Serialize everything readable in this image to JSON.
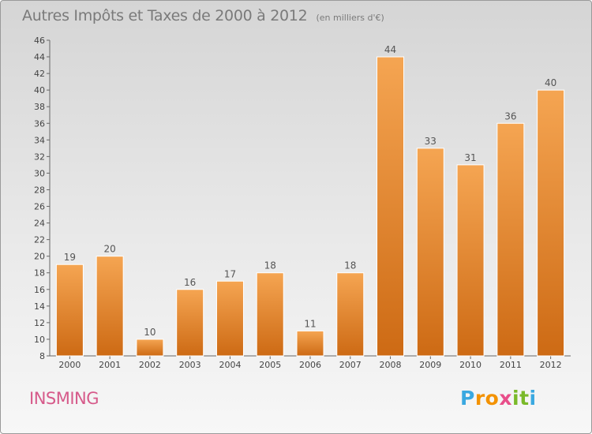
{
  "chart_data": {
    "type": "bar",
    "title": "Autres Impôts et Taxes de 2000 à 2012",
    "subtitle": "(en milliers d'€)",
    "categories": [
      "2000",
      "2001",
      "2002",
      "2003",
      "2004",
      "2005",
      "2006",
      "2007",
      "2008",
      "2009",
      "2010",
      "2011",
      "2012"
    ],
    "values": [
      19,
      20,
      10,
      16,
      17,
      18,
      11,
      18,
      44,
      33,
      31,
      36,
      40
    ],
    "ylim": [
      8,
      46
    ],
    "yticks": [
      8,
      10,
      12,
      14,
      16,
      18,
      20,
      22,
      24,
      26,
      28,
      30,
      32,
      34,
      36,
      38,
      40,
      42,
      44,
      46
    ],
    "grid": false,
    "legend": "none",
    "bar_color": "#f0963f",
    "label_color": "#555555"
  },
  "commune": "INSMING",
  "brand": {
    "letters": [
      "P",
      "r",
      "o",
      "x",
      "i",
      "t",
      "i"
    ],
    "colors": [
      "#3aa8e0",
      "#f39200",
      "#f39200",
      "#e84e8a",
      "#7ab929",
      "#7ab929",
      "#3aa8e0"
    ]
  }
}
